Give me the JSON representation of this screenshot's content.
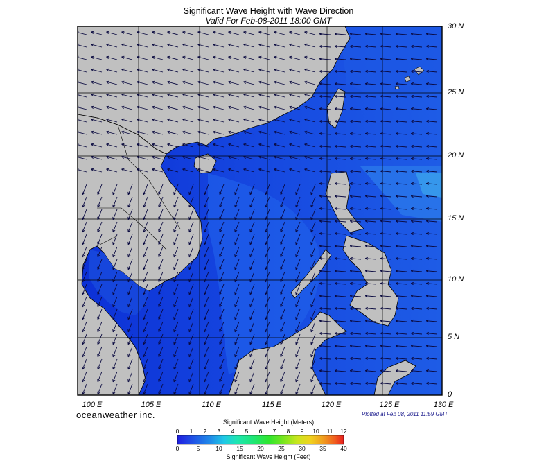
{
  "title": "Significant Wave Height with Wave Direction",
  "subtitle": "Valid For Feb-08-2011 18:00 GMT",
  "brand": "oceanweather inc.",
  "plotted": "Plotted at Feb 08, 2011 11:59 GMT",
  "latitude_labels": [
    "30 N",
    "25 N",
    "20 N",
    "15 N",
    "10 N",
    "5 N",
    "0"
  ],
  "longitude_labels": [
    "100 E",
    "105 E",
    "110 E",
    "115 E",
    "120 E",
    "125 E",
    "130 E"
  ],
  "legend": {
    "meters_title": "Significant Wave Height (Meters)",
    "feet_title": "Significant Wave Height (Feet)",
    "meters_ticks": [
      "0",
      "1",
      "2",
      "3",
      "4",
      "5",
      "6",
      "7",
      "8",
      "9",
      "10",
      "11",
      "12"
    ],
    "feet_ticks": [
      "0",
      "5",
      "10",
      "15",
      "20",
      "25",
      "30",
      "35",
      "40"
    ],
    "colors": [
      "#1f1fe0",
      "#1f55e6",
      "#1f8ce8",
      "#1fc8e6",
      "#1ee6c0",
      "#1ee67a",
      "#2ee62e",
      "#7ae61e",
      "#c8e61e",
      "#f0d21e",
      "#f09a1e",
      "#f05a1e",
      "#e61e1e"
    ]
  },
  "colors": {
    "land": "#c0c0c0",
    "sea_deep": "#0a2ad0",
    "sea_mid": "#1a48e0",
    "sea_light": "#2a70e8",
    "sea_cyan": "#3a9ce8"
  }
}
